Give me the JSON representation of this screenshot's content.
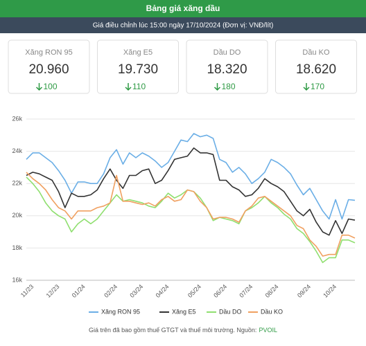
{
  "header": {
    "title": "Bảng giá xăng dầu",
    "subtitle": "Giá điều chỉnh lúc 15:00 ngày 17/10/2024 (Đơn vị: VNĐ/lít)"
  },
  "cards": [
    {
      "name": "Xăng RON 95",
      "price": "20.960",
      "change": 100
    },
    {
      "name": "Xăng E5",
      "price": "19.730",
      "change": 110
    },
    {
      "name": "Dầu DO",
      "price": "18.320",
      "change": 180
    },
    {
      "name": "Dầu KO",
      "price": "18.620",
      "change": 170
    }
  ],
  "chart_data": {
    "type": "line",
    "categories": [
      null,
      "11/23",
      null,
      null,
      null,
      "12/23",
      null,
      null,
      null,
      "01/24",
      null,
      null,
      null,
      null,
      "02/24",
      null,
      null,
      null,
      "03/24",
      null,
      null,
      null,
      "04/24",
      null,
      null,
      null,
      null,
      "05/24",
      null,
      null,
      null,
      "06/24",
      null,
      null,
      null,
      "07/24",
      null,
      null,
      null,
      "08/24",
      null,
      null,
      null,
      null,
      "09/24",
      null,
      null,
      null,
      "10/24",
      null,
      null,
      null
    ],
    "series": [
      {
        "name": "Xăng RON 95",
        "color": "#6aaee6",
        "values": [
          23500,
          23900,
          23900,
          23600,
          23300,
          22800,
          22200,
          21400,
          22100,
          22100,
          22000,
          22000,
          22600,
          23600,
          24100,
          23200,
          23900,
          23600,
          23900,
          23700,
          23400,
          23000,
          23300,
          24000,
          24700,
          24600,
          25100,
          24900,
          25000,
          24800,
          23500,
          23300,
          22700,
          23000,
          22600,
          22000,
          22300,
          22700,
          23500,
          23300,
          23000,
          22600,
          21900,
          21300,
          21700,
          21000,
          20300,
          19800,
          21000,
          19800,
          21000,
          20960
        ]
      },
      {
        "name": "Xăng E5",
        "color": "#333333",
        "values": [
          22500,
          22700,
          22600,
          22400,
          22200,
          21500,
          20500,
          21400,
          21200,
          21200,
          21300,
          21600,
          22300,
          22900,
          22200,
          21700,
          22500,
          22500,
          22800,
          22900,
          22000,
          22200,
          22800,
          23500,
          23600,
          23700,
          24200,
          23900,
          23900,
          23800,
          22200,
          22200,
          21800,
          21600,
          21200,
          21300,
          21700,
          22300,
          22000,
          21800,
          21500,
          20900,
          20300,
          20000,
          20400,
          19600,
          19000,
          18800,
          19700,
          18900,
          19800,
          19730
        ]
      },
      {
        "name": "Dầu DO",
        "color": "#8fdf6f",
        "values": [
          22400,
          22000,
          21500,
          20800,
          20300,
          20000,
          19800,
          19000,
          19500,
          19800,
          19500,
          19800,
          20300,
          20800,
          21300,
          20900,
          21000,
          20900,
          20800,
          20600,
          20500,
          20900,
          21400,
          21100,
          21300,
          21600,
          21500,
          21100,
          20500,
          19700,
          19900,
          19800,
          19700,
          19500,
          20300,
          20500,
          20800,
          21200,
          20800,
          20500,
          20100,
          19800,
          19200,
          18900,
          18400,
          17800,
          17100,
          17400,
          17400,
          18500,
          18500,
          18320
        ]
      },
      {
        "name": "Dầu KO",
        "color": "#f0a060",
        "values": [
          22700,
          22300,
          22000,
          21600,
          21000,
          20500,
          20300,
          19800,
          20300,
          20300,
          20300,
          20500,
          20600,
          20800,
          22500,
          20900,
          20900,
          20800,
          20700,
          20800,
          20600,
          21000,
          21200,
          20900,
          21000,
          21600,
          21500,
          20900,
          20500,
          19800,
          19900,
          19900,
          19800,
          19600,
          20300,
          20600,
          21100,
          21200,
          20900,
          20600,
          20300,
          20000,
          19400,
          19200,
          18500,
          18100,
          17500,
          17600,
          17600,
          18800,
          18800,
          18620
        ]
      }
    ],
    "ylim": [
      16000,
      26000
    ],
    "yticks": [
      {
        "value": 16000,
        "label": "16k"
      },
      {
        "value": 18000,
        "label": "18k"
      },
      {
        "value": 20000,
        "label": "20k"
      },
      {
        "value": 22000,
        "label": "22k"
      },
      {
        "value": 24000,
        "label": "24k"
      },
      {
        "value": 26000,
        "label": "26k"
      }
    ],
    "grid": true,
    "legend": "bottom"
  },
  "footnote": {
    "text": "Giá trên đã bao gồm thuế GTGT và thuế môi trường. Nguồn:",
    "source": "PVOIL"
  }
}
